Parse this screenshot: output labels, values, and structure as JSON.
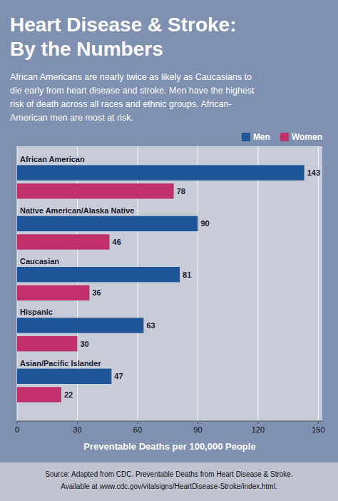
{
  "chart_data": {
    "type": "bar",
    "orientation": "horizontal",
    "title": "Heart Disease & Stroke:\nBy the Numbers",
    "subtitle": "African Americans are nearly twice as likely as Caucasians to\ndie early from heart disease and stroke. Men have the highest\nrisk of death across all races and ethnic groups. African-\nAmerican men are most at risk.",
    "categories": [
      "African American",
      "Native American/Alaska Native",
      "Caucasian",
      "Hispanic",
      "Asian/Pacific Islander"
    ],
    "series": [
      {
        "name": "Men",
        "color": "#1e5799",
        "values": [
          143,
          90,
          81,
          63,
          47
        ]
      },
      {
        "name": "Women",
        "color": "#c0306a",
        "values": [
          78,
          46,
          36,
          30,
          22
        ]
      }
    ],
    "xlabel": "Preventable Deaths per 100,000 People",
    "xlim": [
      0,
      152
    ],
    "xticks": [
      0,
      30,
      60,
      90,
      120,
      150
    ],
    "grid": true,
    "data_labels": true,
    "legend": "top right",
    "annotations": [
      "Source: Adapted from CDC. Preventable Deaths from Heart Disease & Stroke.",
      "Available at www.cdc.gov/vitalsigns/HeartDisease-Stroke/index.html."
    ]
  }
}
